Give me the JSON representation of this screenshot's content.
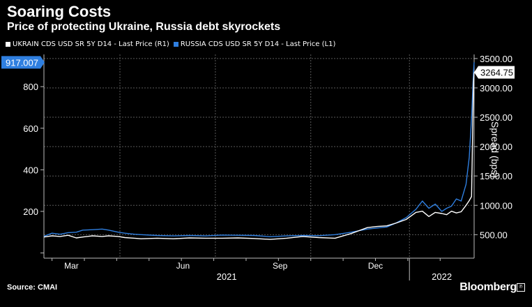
{
  "header": {
    "title": "Soaring Costs",
    "subtitle": "Price of protecting Ukraine, Russia debt skyrockets"
  },
  "legend": [
    {
      "label": "UKRAIN CDS USD SR 5Y D14 - Last Price (R1)",
      "color": "#ffffff"
    },
    {
      "label": "RUSSIA CDS USD SR 5Y D14 - Last Price (L1)",
      "color": "#2f7fe0"
    }
  ],
  "footer": {
    "source": "Source: CMAI",
    "brand": "Bloomberg",
    "brand_mark": "℗"
  },
  "chart_data": {
    "type": "line",
    "title": "Soaring Costs",
    "subtitle": "Price of protecting Ukraine, Russia debt skyrockets",
    "x_tick_labels": [
      "Mar",
      "Jun",
      "Sep",
      "Dec"
    ],
    "x_year_labels": [
      "2021",
      "2022"
    ],
    "left_axis": {
      "ticks": [
        200,
        400,
        600,
        800
      ],
      "range": [
        -25,
        955
      ],
      "last_value_label": "917.007"
    },
    "right_axis": {
      "ticks": [
        500,
        1000,
        1500,
        2000,
        2500,
        3000,
        3500
      ],
      "tick_labels": [
        "500.00",
        "1000.00",
        "1500.00",
        "2000.00",
        "2500.00",
        "3000.00",
        "3500.00"
      ],
      "range": [
        100,
        3570
      ],
      "label": "Spread (bps)",
      "last_value_label": "3264.75"
    },
    "x_range": [
      0,
      13.3
    ],
    "series": [
      {
        "name": "RUSSIA CDS USD SR 5Y D14 - Last Price (L1)",
        "axis": "left",
        "color": "#2f7fe0",
        "x": [
          0,
          0.25,
          0.5,
          0.75,
          1.0,
          1.2,
          1.5,
          1.8,
          2.0,
          2.3,
          2.5,
          2.8,
          3.0,
          3.5,
          4.0,
          4.5,
          5.0,
          5.5,
          6.0,
          6.5,
          7.0,
          7.5,
          8.0,
          8.5,
          9.0,
          9.5,
          10.0,
          10.3,
          10.6,
          10.9,
          11.2,
          11.5,
          11.7,
          11.9,
          12.1,
          12.3,
          12.45,
          12.6,
          12.75,
          12.9,
          13.05,
          13.15,
          13.22,
          13.28,
          13.3
        ],
        "values": [
          80,
          95,
          90,
          98,
          100,
          110,
          112,
          115,
          110,
          100,
          95,
          90,
          88,
          84,
          82,
          84,
          82,
          86,
          85,
          84,
          78,
          82,
          84,
          83,
          88,
          100,
          115,
          120,
          125,
          145,
          170,
          210,
          250,
          215,
          235,
          200,
          215,
          225,
          260,
          250,
          330,
          460,
          650,
          870,
          917
        ]
      },
      {
        "name": "UKRAIN CDS USD SR 5Y D14 - Last Price (R1)",
        "axis": "right",
        "color": "#ffffff",
        "x": [
          0,
          0.25,
          0.5,
          0.75,
          1.0,
          1.2,
          1.5,
          1.8,
          2.0,
          2.3,
          2.5,
          2.8,
          3.0,
          3.5,
          4.0,
          4.5,
          5.0,
          5.5,
          6.0,
          6.5,
          7.0,
          7.5,
          8.0,
          8.5,
          9.0,
          9.5,
          10.0,
          10.3,
          10.6,
          10.9,
          11.2,
          11.5,
          11.7,
          11.9,
          12.1,
          12.3,
          12.45,
          12.6,
          12.75,
          12.9,
          13.05,
          13.15,
          13.22,
          13.28,
          13.3
        ],
        "values": [
          460,
          480,
          470,
          490,
          445,
          460,
          480,
          470,
          480,
          470,
          450,
          440,
          430,
          440,
          430,
          445,
          440,
          440,
          445,
          435,
          420,
          440,
          470,
          450,
          440,
          520,
          620,
          640,
          650,
          700,
          760,
          880,
          900,
          810,
          880,
          860,
          840,
          900,
          870,
          890,
          1000,
          1080,
          1150,
          3100,
          3264.75
        ]
      }
    ]
  }
}
